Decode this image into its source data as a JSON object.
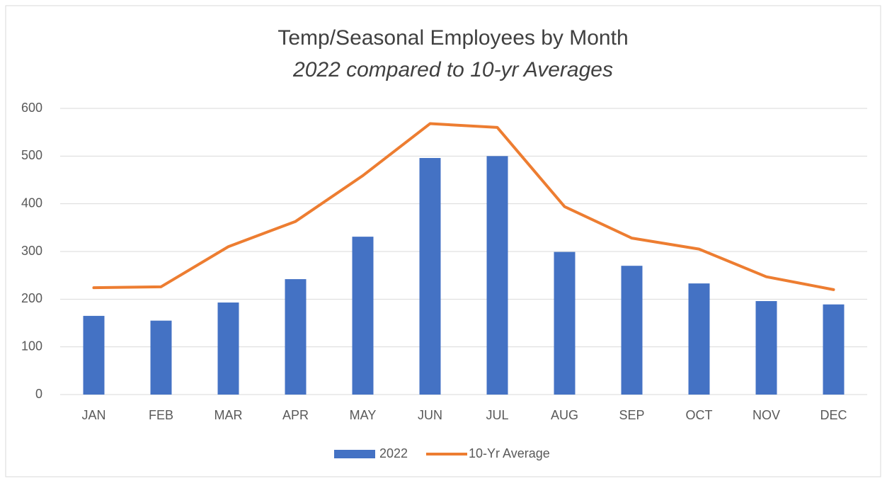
{
  "chart_data": {
    "type": "bar_line",
    "title": "Temp/Seasonal Employees by Month",
    "subtitle": "2022 compared to 10-yr Averages",
    "categories": [
      "JAN",
      "FEB",
      "MAR",
      "APR",
      "MAY",
      "JUN",
      "JUL",
      "AUG",
      "SEP",
      "OCT",
      "NOV",
      "DEC"
    ],
    "series": [
      {
        "name": "2022",
        "type": "bar",
        "color": "#4472c4",
        "values": [
          165,
          155,
          193,
          242,
          331,
          496,
          500,
          299,
          270,
          233,
          196,
          189
        ]
      },
      {
        "name": "10-Yr Average",
        "type": "line",
        "color": "#ed7d31",
        "values": [
          224,
          226,
          310,
          363,
          459,
          568,
          560,
          394,
          328,
          305,
          247,
          220
        ]
      }
    ],
    "ylim": [
      0,
      600
    ],
    "yticks": [
      0,
      100,
      200,
      300,
      400,
      500,
      600
    ],
    "grid": true,
    "legend": "bottom"
  }
}
